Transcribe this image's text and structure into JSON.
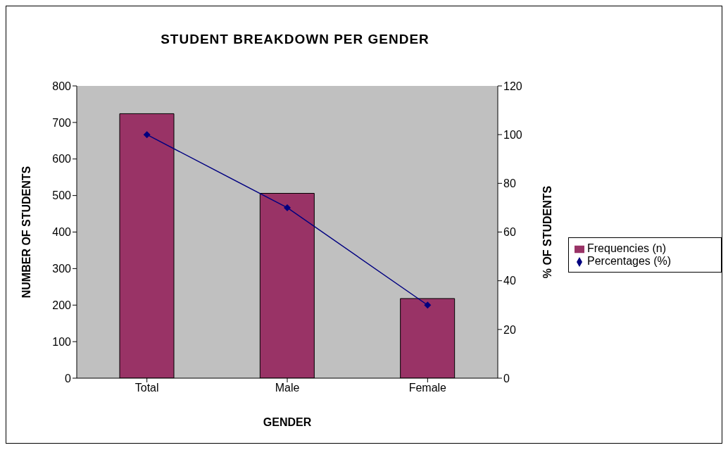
{
  "chart_data": {
    "type": "bar",
    "title": "STUDENT BREAKDOWN PER GENDER",
    "xlabel": "GENDER",
    "ylabel": "NUMBER OF STUDENTS",
    "y2label": "% OF STUDENTS",
    "categories": [
      "Total",
      "Male",
      "Female"
    ],
    "series": [
      {
        "name": "Frequencies (n)",
        "color": "#993366",
        "values": [
          724,
          506,
          218
        ]
      },
      {
        "name": "Percentages (%)",
        "type": "line",
        "axis": "y2",
        "color": "#000080",
        "marker": "diamond",
        "values": [
          100,
          70,
          30
        ]
      }
    ],
    "ylim": [
      0,
      800
    ],
    "yticks": [
      0,
      100,
      200,
      300,
      400,
      500,
      600,
      700,
      800
    ],
    "y2lim": [
      0,
      120
    ],
    "y2ticks": [
      0,
      20,
      40,
      60,
      80,
      100,
      120
    ],
    "grid": false,
    "legend": "right"
  }
}
